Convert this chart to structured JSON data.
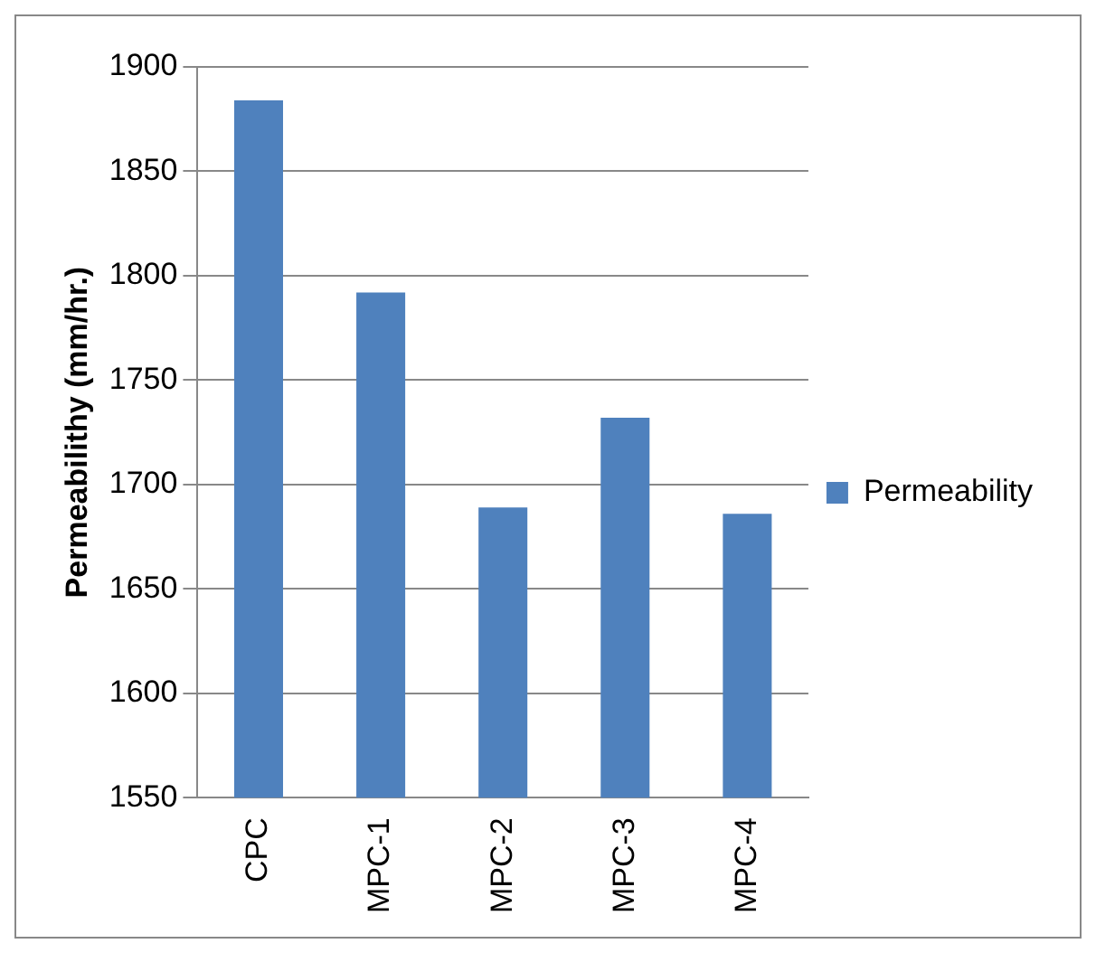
{
  "chart_data": {
    "type": "bar",
    "ylabel": "Permeabilithy (mm/hr.)",
    "categories": [
      "CPC",
      "MPC-1",
      "MPC-2",
      "MPC-3",
      "MPC-4"
    ],
    "series": [
      {
        "name": "Permeability",
        "color": "#4f81bd",
        "values": [
          1884,
          1792,
          1689,
          1732,
          1686
        ]
      }
    ],
    "ylim": [
      1550,
      1900
    ],
    "yticks": [
      1550,
      1600,
      1650,
      1700,
      1750,
      1800,
      1850,
      1900
    ],
    "grid": "y",
    "legend": "right"
  }
}
